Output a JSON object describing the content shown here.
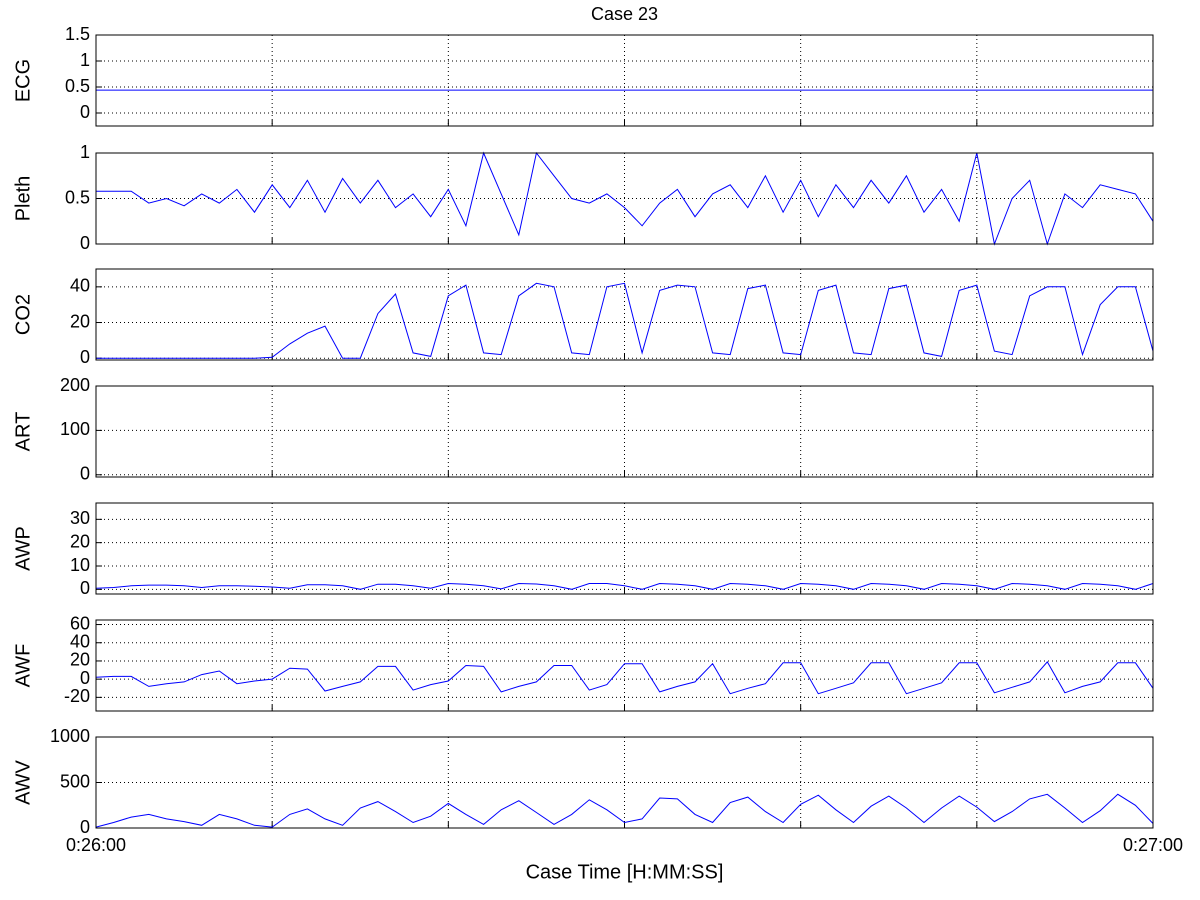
{
  "chart_data": [
    {
      "type": "line",
      "title": "Case 23",
      "ylabel": "ECG",
      "color": "#0000ff",
      "grid": true,
      "x": [
        1560,
        1620
      ],
      "values": [
        0.44,
        0.44
      ],
      "xlim": [
        1560,
        1620
      ],
      "xticks": [
        {
          "value": 1560,
          "label": "0:26:00"
        },
        1570,
        1580,
        1590,
        1600,
        1610,
        {
          "value": 1620,
          "label": "0:27:00"
        }
      ],
      "ylim": [
        -0.25,
        1.5
      ],
      "yticks": [
        0,
        0.5,
        1,
        1.5
      ]
    },
    {
      "type": "line",
      "ylabel": "Pleth",
      "color": "#0000ff",
      "grid": true,
      "x": [
        1560,
        1561,
        1562,
        1563,
        1564,
        1565,
        1566,
        1567,
        1568,
        1569,
        1570,
        1571,
        1572,
        1573,
        1574,
        1575,
        1576,
        1577,
        1578,
        1579,
        1580,
        1581,
        1582,
        1583,
        1584,
        1585,
        1586,
        1587,
        1588,
        1589,
        1590,
        1591,
        1592,
        1593,
        1594,
        1595,
        1596,
        1597,
        1598,
        1599,
        1600,
        1601,
        1602,
        1603,
        1604,
        1605,
        1606,
        1607,
        1608,
        1609,
        1610,
        1611,
        1612,
        1613,
        1614,
        1615,
        1616,
        1617,
        1618,
        1619,
        1620
      ],
      "values": [
        0.58,
        0.58,
        0.58,
        0.45,
        0.5,
        0.42,
        0.55,
        0.45,
        0.6,
        0.35,
        0.65,
        0.4,
        0.7,
        0.35,
        0.72,
        0.45,
        0.7,
        0.4,
        0.55,
        0.3,
        0.6,
        0.2,
        1,
        0.55,
        0.1,
        1,
        0.75,
        0.5,
        0.45,
        0.55,
        0.4,
        0.2,
        0.45,
        0.6,
        0.3,
        0.55,
        0.65,
        0.4,
        0.75,
        0.35,
        0.7,
        0.3,
        0.65,
        0.4,
        0.7,
        0.45,
        0.75,
        0.35,
        0.6,
        0.25,
        1,
        0,
        0.5,
        0.7,
        0.0,
        0.55,
        0.4,
        0.65,
        0.6,
        0.55,
        0.25
      ],
      "xlim": [
        1560,
        1620
      ],
      "xticks": [
        {
          "value": 1560,
          "label": "0:26:00"
        },
        1570,
        1580,
        1590,
        1600,
        1610,
        {
          "value": 1620,
          "label": "0:27:00"
        }
      ],
      "ylim": [
        0,
        1
      ],
      "yticks": [
        0,
        0.5,
        1
      ]
    },
    {
      "type": "line",
      "ylabel": "CO2",
      "color": "#0000ff",
      "grid": true,
      "x": [
        1560,
        1561,
        1562,
        1563,
        1564,
        1565,
        1566,
        1567,
        1568,
        1569,
        1570,
        1571,
        1572,
        1573,
        1574,
        1575,
        1576,
        1577,
        1578,
        1579,
        1580,
        1581,
        1582,
        1583,
        1584,
        1585,
        1586,
        1587,
        1588,
        1589,
        1590,
        1591,
        1592,
        1593,
        1594,
        1595,
        1596,
        1597,
        1598,
        1599,
        1600,
        1601,
        1602,
        1603,
        1604,
        1605,
        1606,
        1607,
        1608,
        1609,
        1610,
        1611,
        1612,
        1613,
        1614,
        1615,
        1616,
        1617,
        1618,
        1619,
        1620
      ],
      "values": [
        0,
        0,
        0,
        0,
        0,
        0,
        0,
        0,
        0,
        0,
        0.5,
        8,
        14,
        18,
        0,
        0,
        25,
        36,
        3,
        1,
        35,
        41,
        3,
        2,
        35,
        42,
        40,
        3,
        2,
        40,
        42,
        3,
        38,
        41,
        40,
        3,
        2,
        39,
        41,
        3,
        2,
        38,
        41,
        3,
        2,
        39,
        41,
        3,
        1,
        38,
        41,
        4,
        2,
        35,
        40,
        40,
        2,
        30,
        40,
        40,
        4
      ],
      "xlim": [
        1560,
        1620
      ],
      "xticks": [
        {
          "value": 1560,
          "label": "0:26:00"
        },
        1570,
        1580,
        1590,
        1600,
        1610,
        {
          "value": 1620,
          "label": "0:27:00"
        }
      ],
      "ylim": [
        -1,
        50
      ],
      "yticks": [
        0,
        20,
        40
      ]
    },
    {
      "type": "line",
      "ylabel": "ART",
      "color": "#0000ff",
      "grid": true,
      "x": [],
      "values": [],
      "xlim": [
        1560,
        1620
      ],
      "xticks": [
        {
          "value": 1560,
          "label": "0:26:00"
        },
        1570,
        1580,
        1590,
        1600,
        1610,
        {
          "value": 1620,
          "label": "0:27:00"
        }
      ],
      "ylim": [
        -5,
        200
      ],
      "yticks": [
        0,
        100,
        200
      ]
    },
    {
      "type": "line",
      "ylabel": "AWP",
      "color": "#0000ff",
      "grid": true,
      "x": [
        1560,
        1561,
        1562,
        1563,
        1564,
        1565,
        1566,
        1567,
        1568,
        1569,
        1570,
        1571,
        1572,
        1573,
        1574,
        1575,
        1576,
        1577,
        1578,
        1579,
        1580,
        1581,
        1582,
        1583,
        1584,
        1585,
        1586,
        1587,
        1588,
        1589,
        1590,
        1591,
        1592,
        1593,
        1594,
        1595,
        1596,
        1597,
        1598,
        1599,
        1600,
        1601,
        1602,
        1603,
        1604,
        1605,
        1606,
        1607,
        1608,
        1609,
        1610,
        1611,
        1612,
        1613,
        1614,
        1615,
        1616,
        1617,
        1618,
        1619,
        1620
      ],
      "values": [
        0.5,
        0.8,
        1.5,
        1.8,
        1.8,
        1.5,
        0.8,
        1.5,
        1.5,
        1.3,
        1.0,
        0.5,
        2.0,
        2.0,
        1.5,
        0,
        2.2,
        2.2,
        1.5,
        0.5,
        2.5,
        2.2,
        1.5,
        0.2,
        2.5,
        2.3,
        1.5,
        0,
        2.5,
        2.5,
        1.5,
        0,
        2.5,
        2.2,
        1.5,
        0,
        2.5,
        2.2,
        1.5,
        0,
        2.5,
        2.2,
        1.5,
        0,
        2.5,
        2.2,
        1.5,
        0,
        2.5,
        2.2,
        1.5,
        0,
        2.5,
        2.2,
        1.5,
        0,
        2.5,
        2.2,
        1.5,
        0,
        2.5
      ],
      "xlim": [
        1560,
        1620
      ],
      "xticks": [
        {
          "value": 1560,
          "label": "0:26:00"
        },
        1570,
        1580,
        1590,
        1600,
        1610,
        {
          "value": 1620,
          "label": "0:27:00"
        }
      ],
      "ylim": [
        -2,
        37
      ],
      "yticks": [
        0,
        10,
        20,
        30
      ]
    },
    {
      "type": "line",
      "ylabel": "AWF",
      "color": "#0000ff",
      "grid": true,
      "x": [
        1560,
        1561,
        1562,
        1563,
        1564,
        1565,
        1566,
        1567,
        1568,
        1569,
        1570,
        1571,
        1572,
        1573,
        1574,
        1575,
        1576,
        1577,
        1578,
        1579,
        1580,
        1581,
        1582,
        1583,
        1584,
        1585,
        1586,
        1587,
        1588,
        1589,
        1590,
        1591,
        1592,
        1593,
        1594,
        1595,
        1596,
        1597,
        1598,
        1599,
        1600,
        1601,
        1602,
        1603,
        1604,
        1605,
        1606,
        1607,
        1608,
        1609,
        1610,
        1611,
        1612,
        1613,
        1614,
        1615,
        1616,
        1617,
        1618,
        1619,
        1620
      ],
      "values": [
        2,
        3,
        3,
        -8,
        -5,
        -3,
        5,
        9,
        -5,
        -2,
        0,
        12,
        11,
        -13,
        -8,
        -3,
        14,
        14,
        -12,
        -6,
        -2,
        15,
        14,
        -14,
        -8,
        -3,
        15,
        15,
        -12,
        -6,
        17,
        17,
        -14,
        -8,
        -3,
        17,
        -16,
        -10,
        -5,
        18,
        18,
        -16,
        -10,
        -4,
        18,
        18,
        -16,
        -10,
        -4,
        18,
        18,
        -15,
        -9,
        -3,
        19,
        -15,
        -8,
        -3,
        18,
        18,
        -10
      ],
      "xlim": [
        1560,
        1620
      ],
      "xticks": [
        {
          "value": 1560,
          "label": "0:26:00"
        },
        1570,
        1580,
        1590,
        1600,
        1610,
        {
          "value": 1620,
          "label": "0:27:00"
        }
      ],
      "ylim": [
        -35,
        65
      ],
      "yticks": [
        -20,
        0,
        20,
        40,
        60
      ]
    },
    {
      "type": "line",
      "ylabel": "AWV",
      "xlabel": "Case Time [H:MM:SS]",
      "color": "#0000ff",
      "grid": true,
      "x": [
        1560,
        1561,
        1562,
        1563,
        1564,
        1565,
        1566,
        1567,
        1568,
        1569,
        1570,
        1571,
        1572,
        1573,
        1574,
        1575,
        1576,
        1577,
        1578,
        1579,
        1580,
        1581,
        1582,
        1583,
        1584,
        1585,
        1586,
        1587,
        1588,
        1589,
        1590,
        1591,
        1592,
        1593,
        1594,
        1595,
        1596,
        1597,
        1598,
        1599,
        1600,
        1601,
        1602,
        1603,
        1604,
        1605,
        1606,
        1607,
        1608,
        1609,
        1610,
        1611,
        1612,
        1613,
        1614,
        1615,
        1616,
        1617,
        1618,
        1619,
        1620
      ],
      "values": [
        10,
        60,
        120,
        150,
        100,
        70,
        30,
        150,
        100,
        30,
        10,
        150,
        210,
        100,
        30,
        220,
        290,
        180,
        60,
        130,
        270,
        150,
        40,
        200,
        300,
        170,
        40,
        150,
        310,
        200,
        60,
        100,
        330,
        320,
        150,
        60,
        280,
        340,
        180,
        60,
        260,
        360,
        200,
        60,
        240,
        350,
        220,
        60,
        220,
        350,
        230,
        70,
        180,
        320,
        370,
        220,
        60,
        190,
        370,
        250,
        50
      ],
      "xlim": [
        1560,
        1620
      ],
      "xticks": [
        {
          "value": 1560,
          "label": "0:26:00"
        },
        1570,
        1580,
        1590,
        1600,
        1610,
        {
          "value": 1620,
          "label": "0:27:00"
        }
      ],
      "ylim": [
        0,
        1000
      ],
      "yticks": [
        0,
        500,
        1000
      ]
    }
  ]
}
